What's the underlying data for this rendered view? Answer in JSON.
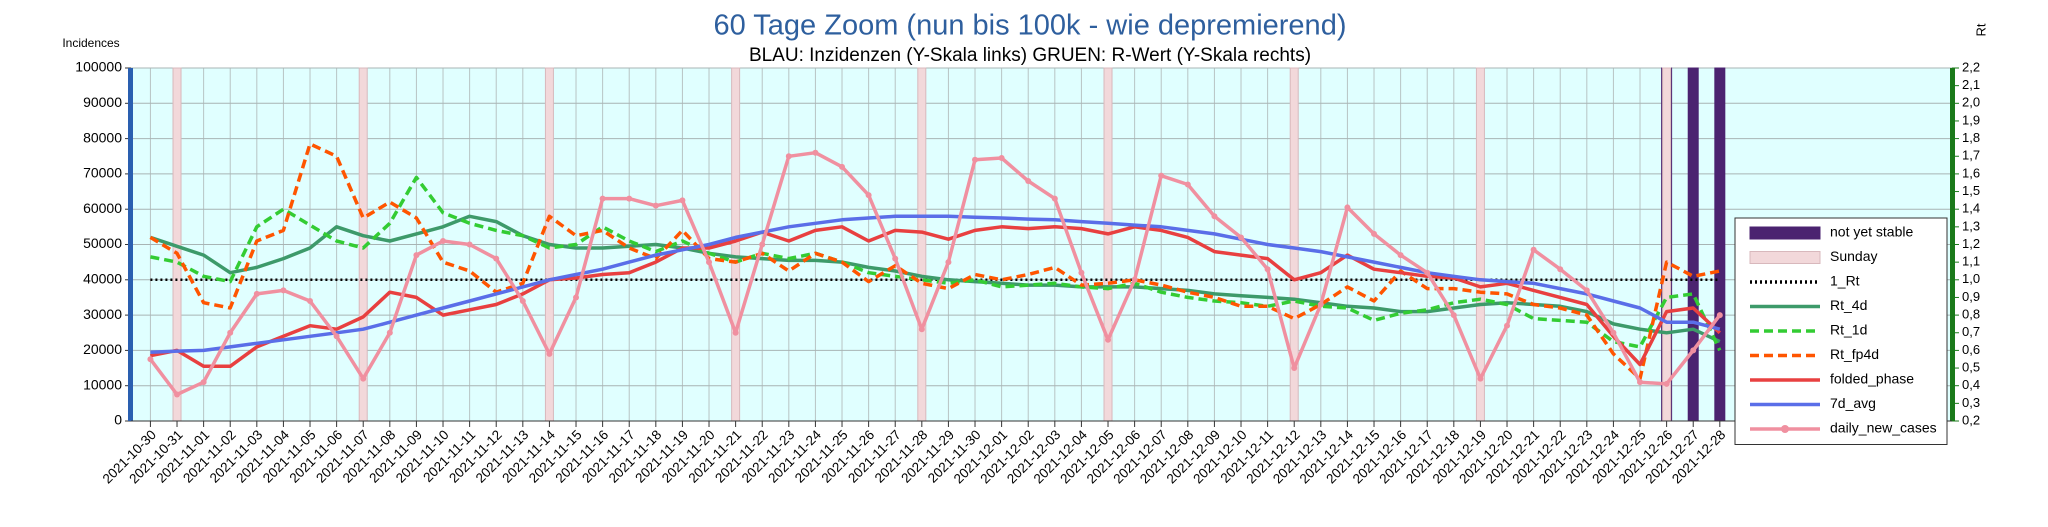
{
  "chart_data": {
    "type": "line",
    "title": "60 Tage Zoom  (nun bis 100k - wie depremierend)",
    "subtitle": "BLAU: Inzidenzen (Y-Skala links)     GRUEN: R-Wert (Y-Skala rechts)",
    "y_label": "Incidences",
    "y2_label": "Rt",
    "categories": [
      "2021-10-30",
      "2021-10-31",
      "2021-11-01",
      "2021-11-02",
      "2021-11-03",
      "2021-11-04",
      "2021-11-05",
      "2021-11-06",
      "2021-11-07",
      "2021-11-08",
      "2021-11-09",
      "2021-11-10",
      "2021-11-11",
      "2021-11-12",
      "2021-11-13",
      "2021-11-14",
      "2021-11-15",
      "2021-11-16",
      "2021-11-17",
      "2021-11-18",
      "2021-11-19",
      "2021-11-20",
      "2021-11-21",
      "2021-11-22",
      "2021-11-23",
      "2021-11-24",
      "2021-11-25",
      "2021-11-26",
      "2021-11-27",
      "2021-11-28",
      "2021-11-29",
      "2021-11-30",
      "2021-12-01",
      "2021-12-02",
      "2021-12-03",
      "2021-12-04",
      "2021-12-05",
      "2021-12-06",
      "2021-12-07",
      "2021-12-08",
      "2021-12-09",
      "2021-12-10",
      "2021-12-11",
      "2021-12-12",
      "2021-12-13",
      "2021-12-14",
      "2021-12-15",
      "2021-12-16",
      "2021-12-17",
      "2021-12-18",
      "2021-12-19",
      "2021-12-20",
      "2021-12-21",
      "2021-12-22",
      "2021-12-23",
      "2021-12-24",
      "2021-12-25",
      "2021-12-26",
      "2021-12-27",
      "2021-12-28"
    ],
    "ylim": [
      0,
      100000
    ],
    "yticks": [
      0,
      10000,
      20000,
      30000,
      40000,
      50000,
      60000,
      70000,
      80000,
      90000,
      100000
    ],
    "y2lim": [
      0.2,
      2.2
    ],
    "y2ticks": [
      {
        "value": 0.2,
        "label": "0,2"
      },
      {
        "value": 0.3,
        "label": "0,3"
      },
      {
        "value": 0.4,
        "label": "0,4"
      },
      {
        "value": 0.5,
        "label": "0,5"
      },
      {
        "value": 0.6,
        "label": "0,6"
      },
      {
        "value": 0.7,
        "label": "0,7"
      },
      {
        "value": 0.8,
        "label": "0,8"
      },
      {
        "value": 0.9,
        "label": "0,9"
      },
      {
        "value": 1.0,
        "label": "1,0"
      },
      {
        "value": 1.1,
        "label": "1,1"
      },
      {
        "value": 1.2,
        "label": "1,2"
      },
      {
        "value": 1.3,
        "label": "1,3"
      },
      {
        "value": 1.4,
        "label": "1,4"
      },
      {
        "value": 1.5,
        "label": "1,5"
      },
      {
        "value": 1.6,
        "label": "1,6"
      },
      {
        "value": 1.7,
        "label": "1,7"
      },
      {
        "value": 1.8,
        "label": "1,8"
      },
      {
        "value": 1.9,
        "label": "1,9"
      },
      {
        "value": 2.0,
        "label": "2,0"
      },
      {
        "value": 2.1,
        "label": "2,1"
      },
      {
        "value": 2.2,
        "label": "2,2"
      }
    ],
    "grid": true,
    "legend": "right",
    "series": [
      {
        "name": "not yet stable",
        "color": "#4b2370",
        "style": "bar",
        "values": [
          null,
          null,
          null,
          null,
          null,
          null,
          null,
          null,
          null,
          null,
          null,
          null,
          null,
          null,
          null,
          null,
          null,
          null,
          null,
          null,
          null,
          null,
          null,
          null,
          null,
          null,
          null,
          null,
          null,
          null,
          null,
          null,
          null,
          null,
          null,
          null,
          null,
          null,
          null,
          null,
          null,
          null,
          null,
          null,
          null,
          null,
          null,
          null,
          null,
          null,
          null,
          null,
          null,
          null,
          null,
          null,
          null,
          100000,
          100000,
          100000
        ]
      },
      {
        "name": "Sunday",
        "color": "#f2d8da",
        "style": "bar",
        "values": [
          null,
          100000,
          null,
          null,
          null,
          null,
          null,
          null,
          100000,
          null,
          null,
          null,
          null,
          null,
          null,
          100000,
          null,
          null,
          null,
          null,
          null,
          null,
          100000,
          null,
          null,
          null,
          null,
          null,
          null,
          100000,
          null,
          null,
          null,
          null,
          null,
          null,
          100000,
          null,
          null,
          null,
          null,
          null,
          null,
          100000,
          null,
          null,
          null,
          null,
          null,
          null,
          100000,
          null,
          null,
          null,
          null,
          null,
          null,
          100000,
          null,
          null
        ]
      },
      {
        "name": "1_Rt",
        "color": "#000000",
        "style": "dotted",
        "axis": "y2",
        "values": [
          1,
          1,
          1,
          1,
          1,
          1,
          1,
          1,
          1,
          1,
          1,
          1,
          1,
          1,
          1,
          1,
          1,
          1,
          1,
          1,
          1,
          1,
          1,
          1,
          1,
          1,
          1,
          1,
          1,
          1,
          1,
          1,
          1,
          1,
          1,
          1,
          1,
          1,
          1,
          1,
          1,
          1,
          1,
          1,
          1,
          1,
          1,
          1,
          1,
          1,
          1,
          1,
          1,
          1,
          1,
          1,
          1,
          1,
          1,
          1
        ]
      },
      {
        "name": "Rt_4d",
        "color": "#3d9a6a",
        "style": "solid",
        "axis": "y2",
        "values": [
          1.24,
          1.19,
          1.14,
          1.04,
          1.07,
          1.12,
          1.18,
          1.3,
          1.25,
          1.22,
          1.26,
          1.3,
          1.36,
          1.33,
          1.25,
          1.2,
          1.18,
          1.18,
          1.19,
          1.2,
          1.18,
          1.15,
          1.13,
          1.12,
          1.11,
          1.11,
          1.1,
          1.07,
          1.05,
          1.02,
          1.0,
          0.99,
          0.98,
          0.97,
          0.97,
          0.96,
          0.96,
          0.96,
          0.95,
          0.94,
          0.92,
          0.91,
          0.9,
          0.89,
          0.87,
          0.85,
          0.84,
          0.82,
          0.82,
          0.84,
          0.86,
          0.87,
          0.86,
          0.85,
          0.82,
          0.75,
          0.72,
          0.7,
          0.72,
          0.65
        ]
      },
      {
        "name": "Rt_1d",
        "color": "#33cc33",
        "style": "dashed",
        "axis": "y2",
        "values": [
          1.13,
          1.1,
          1.02,
          0.99,
          1.3,
          1.4,
          1.31,
          1.22,
          1.18,
          1.32,
          1.58,
          1.38,
          1.32,
          1.28,
          1.25,
          1.18,
          1.2,
          1.3,
          1.22,
          1.16,
          1.22,
          1.15,
          1.1,
          1.15,
          1.12,
          1.15,
          1.1,
          1.04,
          1.02,
          1.0,
          0.98,
          1.0,
          0.96,
          0.97,
          0.98,
          0.96,
          0.95,
          0.98,
          0.93,
          0.9,
          0.88,
          0.87,
          0.85,
          0.88,
          0.85,
          0.84,
          0.77,
          0.81,
          0.83,
          0.87,
          0.89,
          0.86,
          0.78,
          0.77,
          0.76,
          0.65,
          0.62,
          0.9,
          0.92,
          0.6
        ]
      },
      {
        "name": "Rt_fp4d",
        "color": "#ff5500",
        "style": "dashed",
        "axis": "y2",
        "values": [
          1.24,
          1.15,
          0.87,
          0.84,
          1.22,
          1.28,
          1.77,
          1.7,
          1.35,
          1.44,
          1.35,
          1.1,
          1.05,
          0.93,
          0.98,
          1.36,
          1.25,
          1.28,
          1.18,
          1.12,
          1.28,
          1.12,
          1.1,
          1.15,
          1.05,
          1.15,
          1.1,
          0.99,
          1.08,
          0.98,
          0.95,
          1.03,
          1.0,
          1.03,
          1.07,
          0.97,
          0.98,
          1.0,
          0.97,
          0.93,
          0.9,
          0.85,
          0.85,
          0.78,
          0.86,
          0.96,
          0.88,
          1.05,
          0.95,
          0.95,
          0.93,
          0.92,
          0.86,
          0.84,
          0.8,
          0.58,
          0.44,
          1.1,
          1.02,
          1.05
        ]
      },
      {
        "name": "folded_phase",
        "color": "#e84040",
        "style": "solid",
        "values": [
          18500,
          20000,
          15500,
          15500,
          21000,
          24000,
          27000,
          26000,
          29500,
          36500,
          35000,
          30000,
          31500,
          33000,
          36000,
          40000,
          40500,
          41500,
          42000,
          45000,
          49000,
          49000,
          51000,
          53500,
          51000,
          54000,
          55000,
          51000,
          54000,
          53500,
          51500,
          54000,
          55000,
          54500,
          55000,
          54500,
          53000,
          55000,
          54000,
          52000,
          48000,
          47000,
          46000,
          40000,
          42000,
          47000,
          43000,
          42000,
          41000,
          40500,
          38000,
          39000,
          37000,
          35000,
          33000,
          24000,
          16000,
          31000,
          32000,
          25000
        ]
      },
      {
        "name": "7d_avg",
        "color": "#5a6ee8",
        "style": "solid",
        "values": [
          19500,
          19800,
          20000,
          21000,
          22000,
          23000,
          24000,
          25000,
          26000,
          28000,
          30000,
          32000,
          34000,
          36000,
          38000,
          40000,
          41500,
          43000,
          45000,
          47000,
          48500,
          50000,
          52000,
          53500,
          55000,
          56000,
          57000,
          57500,
          58000,
          58000,
          58000,
          57700,
          57500,
          57200,
          57000,
          56500,
          56000,
          55500,
          55000,
          54000,
          53000,
          51500,
          50000,
          49000,
          48000,
          46500,
          45000,
          43500,
          42000,
          41000,
          40000,
          39500,
          39000,
          37500,
          36000,
          34000,
          32000,
          28000,
          28000,
          26000
        ]
      },
      {
        "name": "daily_new_cases",
        "color": "#f090a0",
        "style": "marker",
        "values": [
          17500,
          7500,
          11000,
          25000,
          36000,
          37000,
          34000,
          24000,
          12000,
          25000,
          47000,
          51000,
          50000,
          46000,
          34000,
          19000,
          35000,
          63000,
          63000,
          61000,
          62500,
          45000,
          25000,
          50000,
          75000,
          76000,
          72000,
          64000,
          46000,
          26000,
          45000,
          74000,
          74500,
          68000,
          63000,
          42000,
          23000,
          40000,
          69500,
          67000,
          58000,
          52000,
          43000,
          15000,
          33000,
          60500,
          53000,
          47000,
          42000,
          30000,
          12000,
          27000,
          48500,
          43000,
          37000,
          25000,
          11000,
          10500,
          20000,
          30000
        ]
      }
    ]
  }
}
